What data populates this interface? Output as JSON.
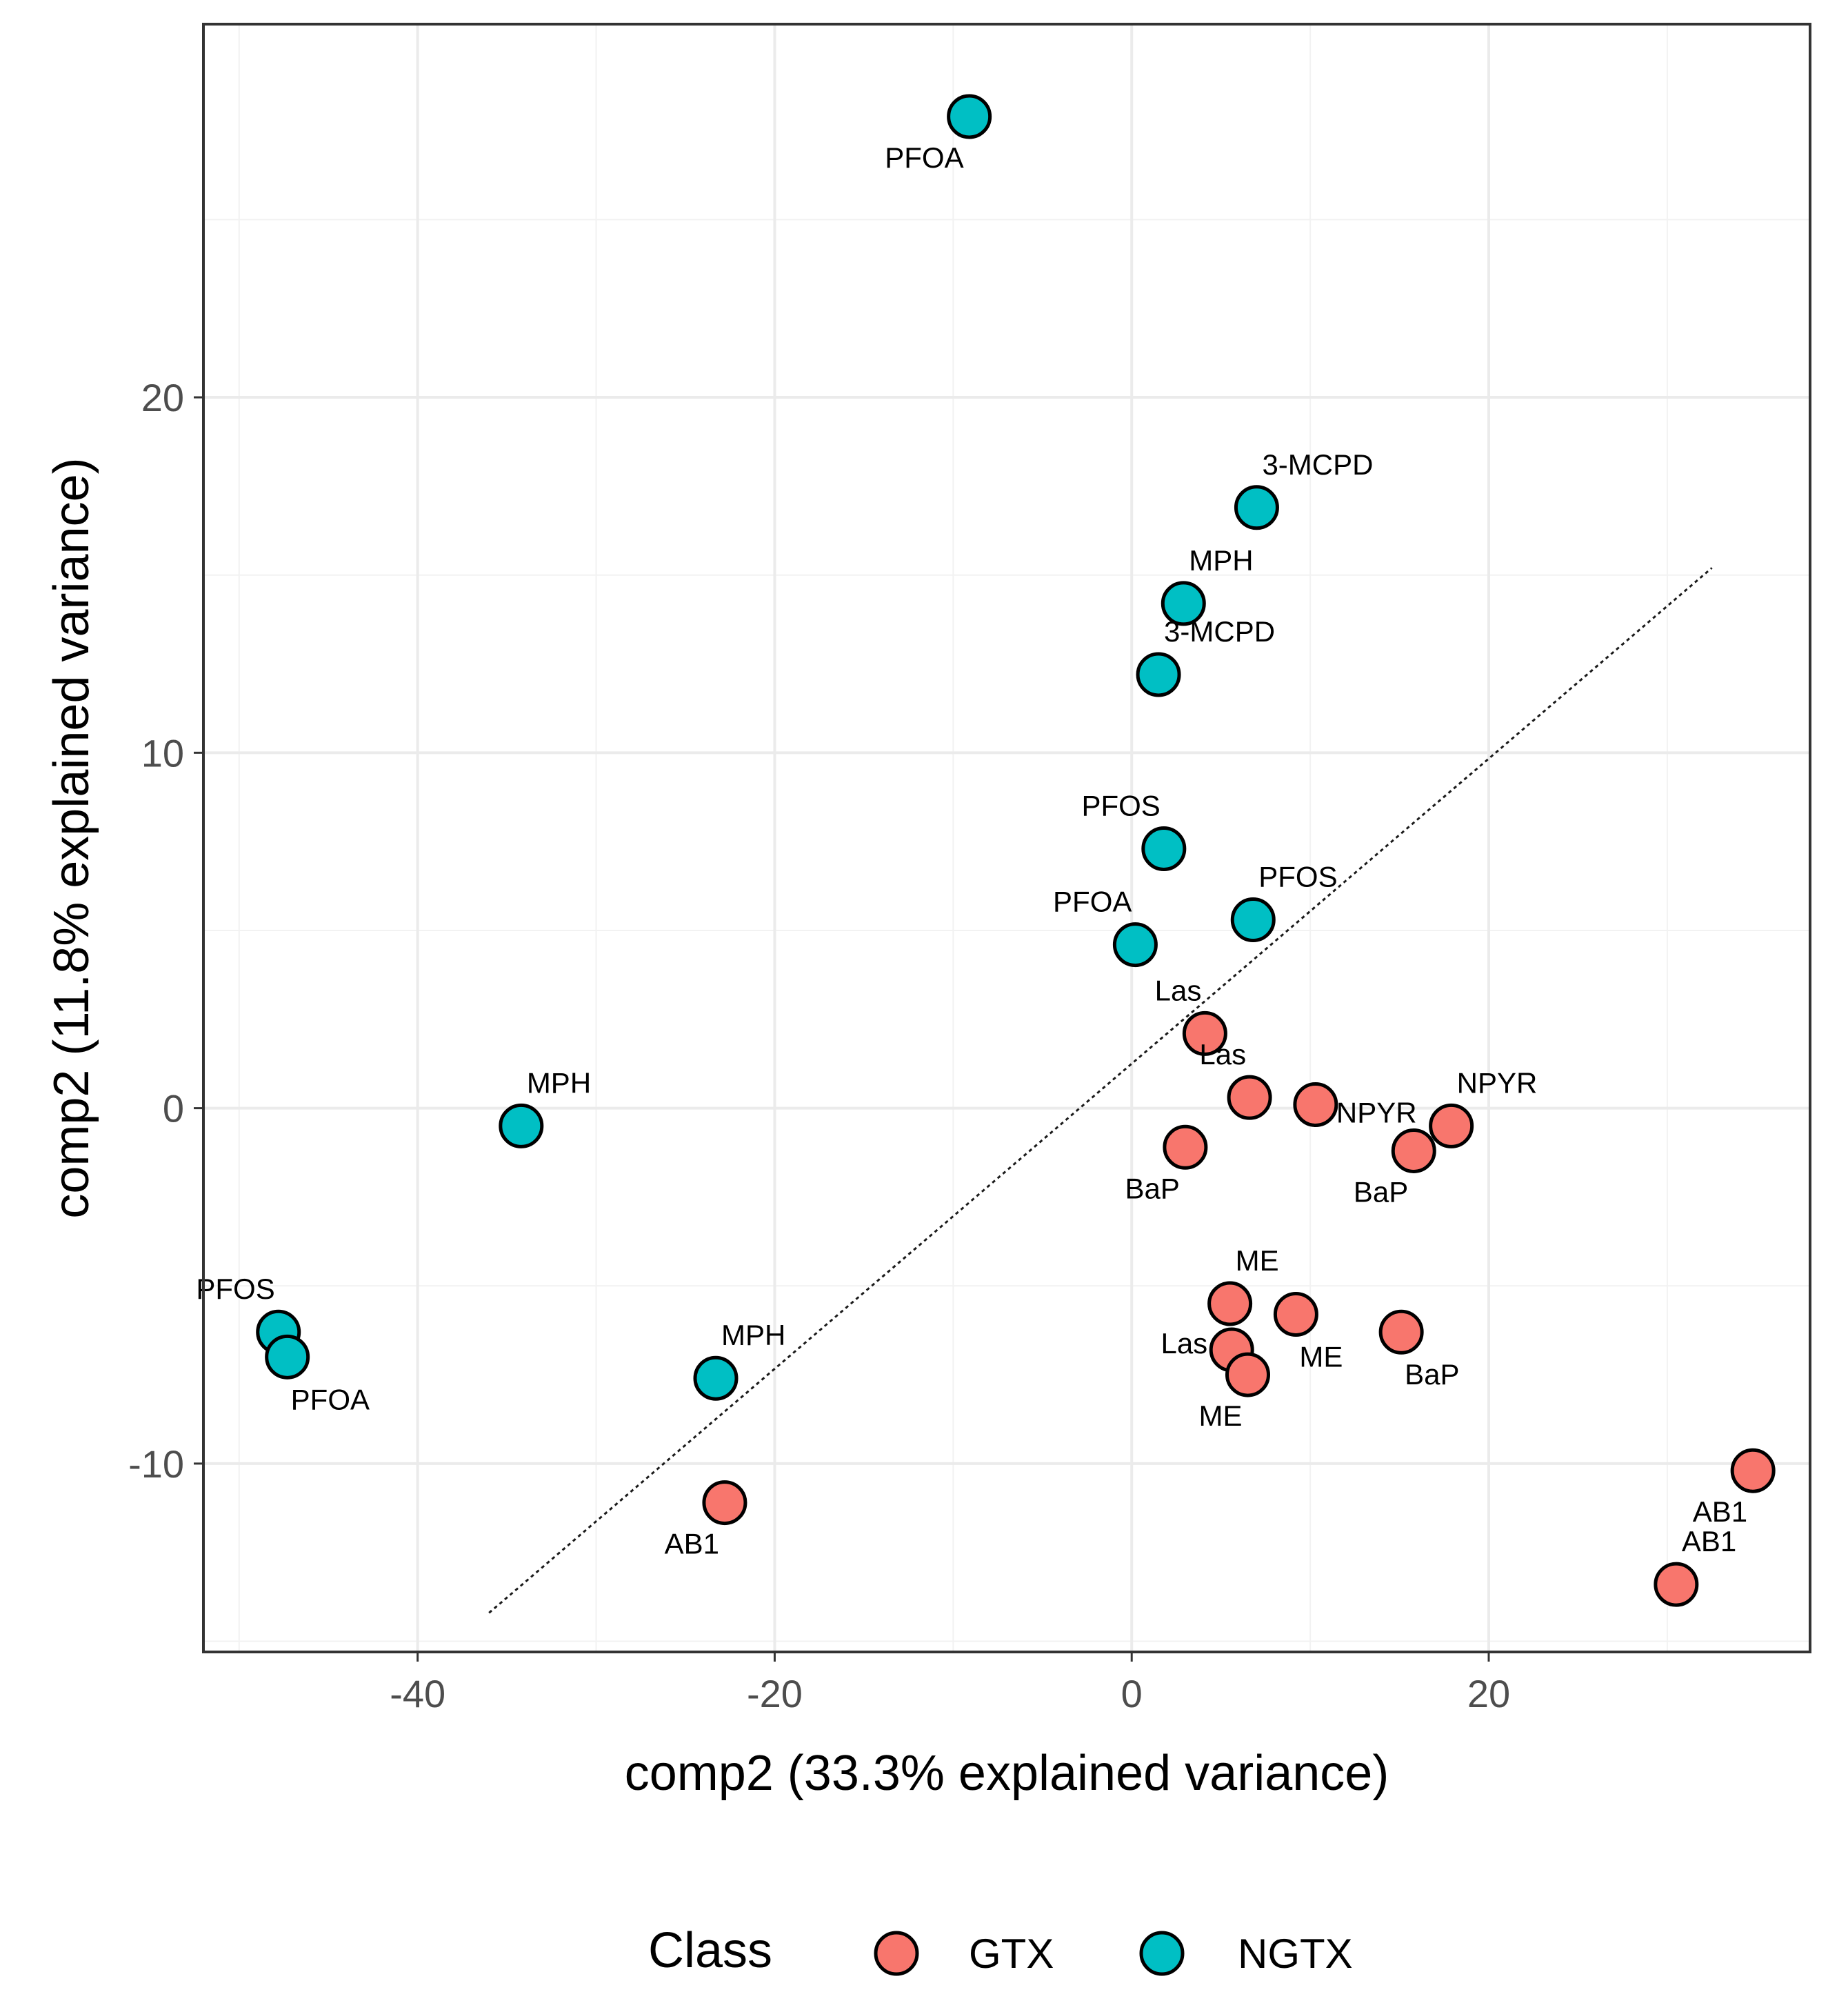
{
  "chart_data": {
    "type": "scatter",
    "xlabel": "comp2 (33.3% explained variance)",
    "ylabel": "comp2 (11.8% explained variance)",
    "xlim": [
      -52,
      38
    ],
    "ylim": [
      -15.3,
      30.5
    ],
    "x_ticks": [
      -40,
      -20,
      0,
      20
    ],
    "y_ticks": [
      -10,
      0,
      10,
      20
    ],
    "grid": true,
    "legend": {
      "title": "Class",
      "position": "bottom",
      "entries": [
        {
          "name": "GTX",
          "color": "#F8766D"
        },
        {
          "name": "NGTX",
          "color": "#00BFC4"
        }
      ]
    },
    "reference_line": {
      "style": "dotted",
      "x": [
        -36,
        32.5
      ],
      "y": [
        -14.2,
        15.2
      ]
    },
    "series": [
      {
        "name": "GTX",
        "color": "#F8766D",
        "points": [
          {
            "x": 4.1,
            "y": 2.1,
            "label": "Las",
            "label_pos": "upper-left"
          },
          {
            "x": 6.6,
            "y": 0.3,
            "label": "Las",
            "label_pos": "upper-left"
          },
          {
            "x": 10.3,
            "y": 0.1,
            "label": "NPYR",
            "label_pos": "right-below"
          },
          {
            "x": 17.9,
            "y": -0.5,
            "label": "NPYR",
            "label_pos": "upper-right"
          },
          {
            "x": 3.0,
            "y": -1.1,
            "label": "BaP",
            "label_pos": "lower-left"
          },
          {
            "x": 15.8,
            "y": -1.2,
            "label": "BaP",
            "label_pos": "lower-left"
          },
          {
            "x": 5.5,
            "y": -5.5,
            "label": "ME",
            "label_pos": "upper-right"
          },
          {
            "x": 9.2,
            "y": -5.8,
            "label": "ME",
            "label_pos": "lower-right"
          },
          {
            "x": 15.1,
            "y": -6.3,
            "label": "BaP",
            "label_pos": "lower-right"
          },
          {
            "x": 5.6,
            "y": -6.8,
            "label": "Las",
            "label_pos": "left"
          },
          {
            "x": 6.5,
            "y": -7.5,
            "label": "ME",
            "label_pos": "lower-left"
          },
          {
            "x": -22.8,
            "y": -11.1,
            "label": "AB1",
            "label_pos": "lower-left"
          },
          {
            "x": 34.8,
            "y": -10.2,
            "label": "AB1",
            "label_pos": "lower-left"
          },
          {
            "x": 30.5,
            "y": -13.4,
            "label": "AB1",
            "label_pos": "upper-right"
          }
        ]
      },
      {
        "name": "NGTX",
        "color": "#00BFC4",
        "points": [
          {
            "x": -9.1,
            "y": 27.9,
            "label": "PFOA",
            "label_pos": "lower-left"
          },
          {
            "x": 7.0,
            "y": 16.9,
            "label": "3-MCPD",
            "label_pos": "upper-right"
          },
          {
            "x": 2.9,
            "y": 14.2,
            "label": "MPH",
            "label_pos": "upper-right"
          },
          {
            "x": 1.5,
            "y": 12.2,
            "label": "3-MCPD",
            "label_pos": "upper-right"
          },
          {
            "x": 1.8,
            "y": 7.3,
            "label": "PFOS",
            "label_pos": "upper-left"
          },
          {
            "x": 6.8,
            "y": 5.3,
            "label": "PFOS",
            "label_pos": "upper-right"
          },
          {
            "x": 0.2,
            "y": 4.6,
            "label": "PFOA",
            "label_pos": "upper-left"
          },
          {
            "x": -34.2,
            "y": -0.5,
            "label": "MPH",
            "label_pos": "upper-right"
          },
          {
            "x": -47.8,
            "y": -6.3,
            "label": "PFOS",
            "label_pos": "upper-left"
          },
          {
            "x": -47.3,
            "y": -7.0,
            "label": "PFOA",
            "label_pos": "lower-right"
          },
          {
            "x": -23.3,
            "y": -7.6,
            "label": "MPH",
            "label_pos": "upper-right"
          }
        ]
      }
    ]
  }
}
